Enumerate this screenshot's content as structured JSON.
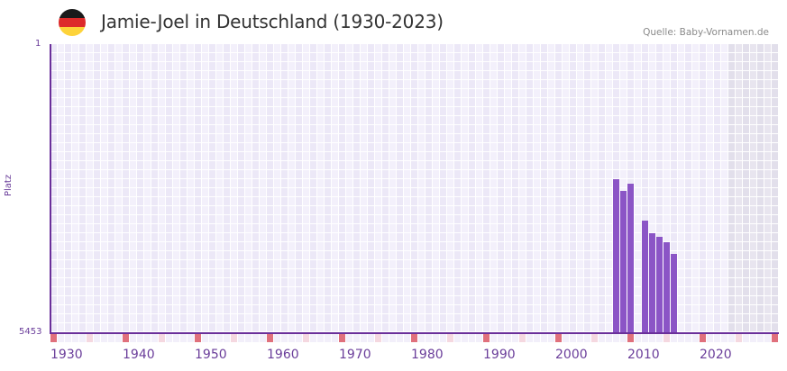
{
  "header": {
    "title": "Jamie-Joel in Deutschland (1930-2023)",
    "source": "Quelle: Baby-Vornamen.de",
    "flag": {
      "name": "germany-flag",
      "colors": [
        "#1a1a1a",
        "#dd2a2a",
        "#fdd33a"
      ]
    }
  },
  "axes": {
    "y_top_label": "1",
    "y_bottom_label": "5453",
    "y_title": "Platz",
    "x_labels": [
      "1930",
      "1940",
      "1950",
      "1960",
      "1970",
      "1980",
      "1990",
      "2000",
      "2010",
      "2020"
    ]
  },
  "colors": {
    "bar": "#8b55c6",
    "axis": "#6a2f9a",
    "decade_marker": "#e0707c",
    "half_decade_marker": "#f5d8e0",
    "grid_a": "#ece8f7",
    "grid_b": "#f3f0fb",
    "future_shade": "#e2dfeb"
  },
  "chart_data": {
    "type": "bar",
    "title": "Jamie-Joel in Deutschland (1930-2023)",
    "xlabel": "",
    "ylabel": "Platz",
    "y_inverted": true,
    "ylim": [
      5453,
      1
    ],
    "xlim": [
      1930,
      2030
    ],
    "shaded_future_from": 2024,
    "grid": true,
    "categories": [
      "2008",
      "2009",
      "2010",
      "2012",
      "2013",
      "2014",
      "2015",
      "2016"
    ],
    "values": [
      2550,
      2770,
      2630,
      3330,
      3570,
      3640,
      3740,
      3950
    ],
    "x_tick_labels": [
      "1930",
      "1940",
      "1950",
      "1960",
      "1970",
      "1980",
      "1990",
      "2000",
      "2010",
      "2020"
    ],
    "y_tick_labels": [
      "1",
      "5453"
    ],
    "legend": []
  }
}
